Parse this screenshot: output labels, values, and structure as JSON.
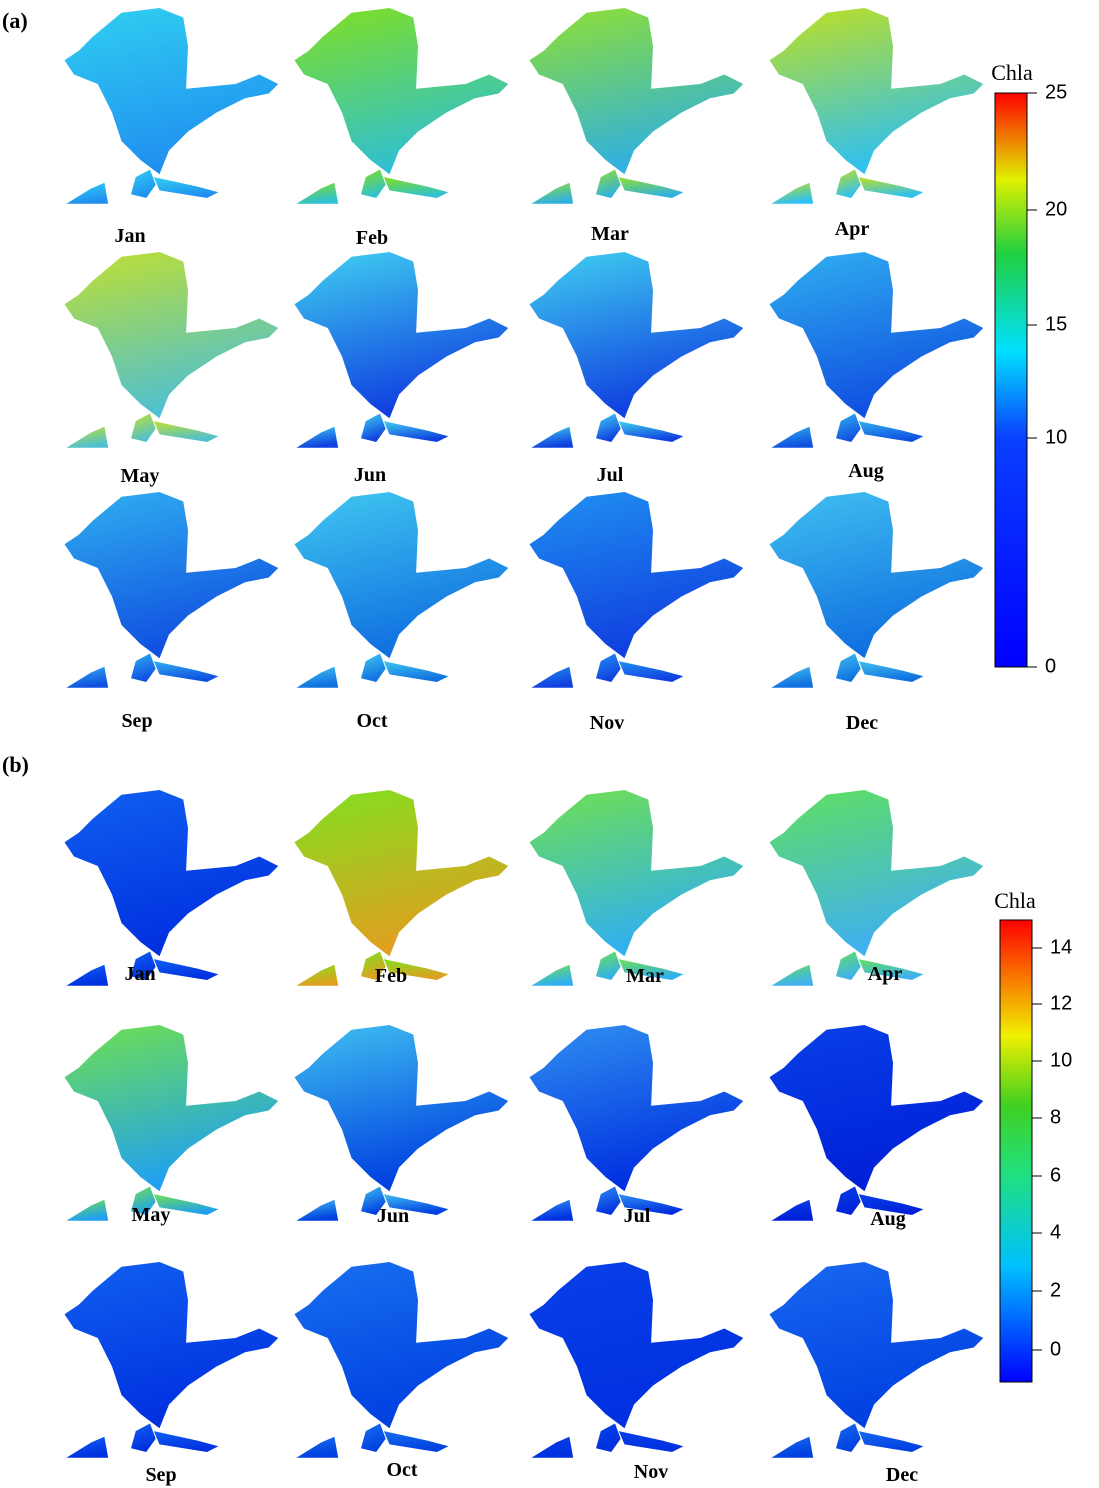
{
  "panels": [
    {
      "label": "(a)",
      "months": [
        "Jan",
        "Feb",
        "Mar",
        "Apr",
        "May",
        "Jun",
        "Jul",
        "Aug",
        "Sep",
        "Oct",
        "Nov",
        "Dec"
      ],
      "colorbar": {
        "title": "Chla",
        "ticks": [
          25,
          20,
          15,
          10,
          0
        ]
      }
    },
    {
      "label": "(b)",
      "months": [
        "Jan",
        "Feb",
        "Mar",
        "Apr",
        "May",
        "Jun",
        "Jul",
        "Aug",
        "Sep",
        "Oct",
        "Nov",
        "Dec"
      ],
      "colorbar": {
        "title": "Chla",
        "ticks": [
          14,
          12,
          10,
          8,
          6,
          4,
          2,
          0
        ]
      }
    }
  ]
}
